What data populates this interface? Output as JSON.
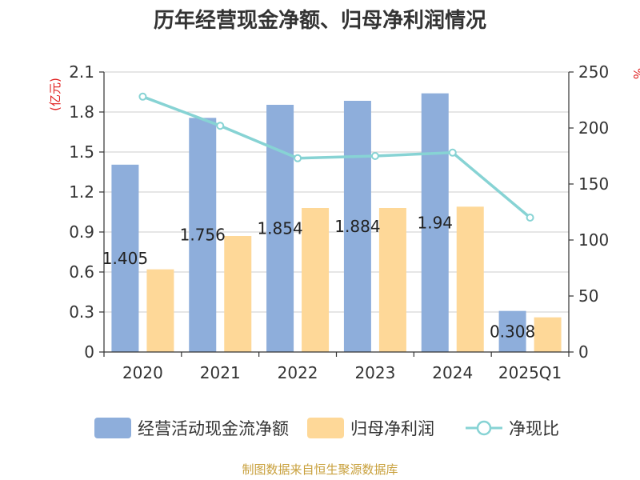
{
  "title": "历年经营现金净额、归母净利润情况",
  "source": "制图数据来自恒生聚源数据库",
  "chart_data": {
    "type": "bar",
    "categories": [
      "2020",
      "2021",
      "2022",
      "2023",
      "2024",
      "2025Q1"
    ],
    "y_left": {
      "unit": "(亿元)",
      "ylim": [
        0,
        2.1
      ],
      "ticks": [
        "0",
        "0.3",
        "0.6",
        "0.9",
        "1.2",
        "1.5",
        "1.8",
        "2.1"
      ]
    },
    "y_right": {
      "unit": "%",
      "ylim": [
        0,
        250
      ],
      "ticks": [
        "0",
        "50",
        "100",
        "150",
        "200",
        "250"
      ]
    },
    "series": [
      {
        "name": "经营活动现金流净额",
        "type": "bar",
        "axis": "left",
        "color": "#8eaedb",
        "values": [
          1.405,
          1.756,
          1.854,
          1.884,
          1.94,
          0.308
        ],
        "labels": [
          "1.405",
          "1.756",
          "1.854",
          "1.884",
          "1.94",
          "0.308"
        ]
      },
      {
        "name": "归母净利润",
        "type": "bar",
        "axis": "left",
        "color": "#fed898",
        "values": [
          0.62,
          0.87,
          1.08,
          1.08,
          1.09,
          0.26
        ]
      },
      {
        "name": "净现比",
        "type": "line",
        "axis": "right",
        "color": "#87d3d4",
        "values": [
          228,
          202,
          173,
          175,
          178,
          120
        ]
      }
    ],
    "grid": true,
    "legend_position": "bottom"
  }
}
